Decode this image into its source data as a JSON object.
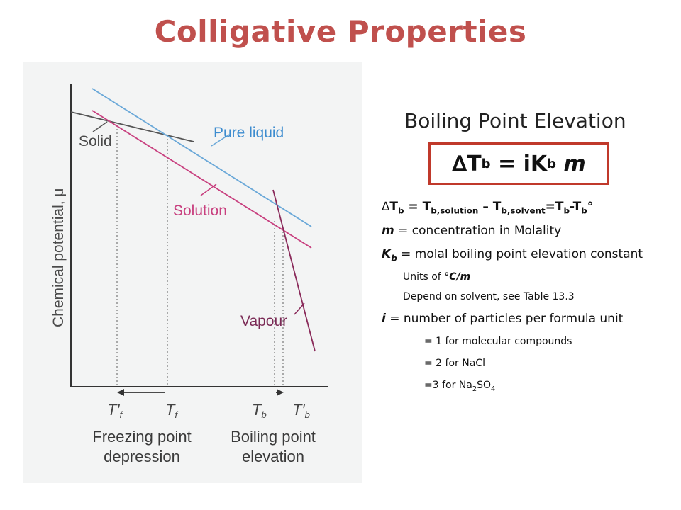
{
  "slide": {
    "title": "Colligative Properties",
    "subtitle": "Boiling Point Elevation"
  },
  "formula": {
    "delta": "∆",
    "T": "T",
    "b_sub": "b",
    "equals_iK": "= iK",
    "m": "m"
  },
  "definitions": {
    "line1": {
      "lhs_delta": "∆",
      "lhs_T": "T",
      "lhs_sub": "b",
      "eq1": " = T",
      "sub_solution": "b,solution",
      "minus": " – T",
      "sub_solvent": "b,solvent",
      "rest": "=T",
      "sub_b1": "b",
      "rest2": "-T",
      "sub_b2": "b",
      "degree": "°"
    },
    "molality": {
      "symbol": "m",
      "text": " = concentration in Molality"
    },
    "kb": {
      "symbol": "K",
      "sub": "b",
      "text": " = molal boiling point elevation constant"
    },
    "units_prefix": "Units of ",
    "units_value": "°C/m",
    "depend": "Depend on solvent, see Table 13.3",
    "i_def": {
      "symbol": "i",
      "text": " = number of particles per formula unit"
    },
    "eq_molecular": "= 1 for molecular compounds",
    "eq_nacl": "= 2 for NaCl",
    "eq_na2so4_prefix": "=3 for Na",
    "eq_na2so4_sub1": "2",
    "eq_na2so4_mid": "SO",
    "eq_na2so4_sub2": "4"
  },
  "diagram": {
    "y_axis_label": "Chemical potential, μ",
    "label_solid": "Solid",
    "label_pure_liquid": "Pure liquid",
    "label_solution": "Solution",
    "label_vapour": "Vapour",
    "tick_tf_prime": "T′",
    "tick_tf_prime_sub": "f",
    "tick_tf": "T",
    "tick_tf_sub": "f",
    "tick_tb": "T",
    "tick_tb_sub": "b",
    "tick_tb_prime": "T′",
    "tick_tb_prime_sub": "b",
    "fpd_line1": "Freezing point",
    "fpd_line2": "depression",
    "bpe_line1": "Boiling point",
    "bpe_line2": "elevation",
    "colors": {
      "solid": "#555555",
      "pure_liquid": "#6aa8d8",
      "solution": "#c8407f",
      "vapour": "#8a2a5a",
      "label_blue": "#3d8ccf",
      "label_pink": "#c8407f",
      "label_vapour": "#7a2a55",
      "axis_text": "#4a4a4a",
      "bottom_text": "#3a3a3a"
    }
  }
}
